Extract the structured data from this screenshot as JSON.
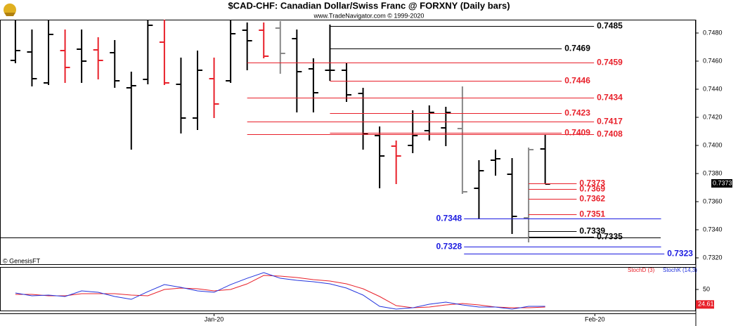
{
  "chart_data": {
    "type": "ohlc",
    "title": "$CAD-CHF:  Canadian Dollar/Swiss Franc @ FORXNY  (Daily bars)",
    "subtitle": "www.TradeNavigator.com © 1999-2020",
    "source": "© GenesisFT",
    "xlim": [
      -0.93,
      41.1
    ],
    "xticks": [
      {
        "value": 12,
        "label": "Jan-20"
      },
      {
        "value": 35,
        "label": "Feb-20"
      }
    ],
    "ylim": [
      0.73155,
      0.74895
    ],
    "yticks": [
      {
        "value": 0.732,
        "label": "0.7320"
      },
      {
        "value": 0.734,
        "label": "0.7340"
      },
      {
        "value": 0.736,
        "label": "0.7360"
      },
      {
        "value": 0.738,
        "label": "0.7380"
      },
      {
        "value": 0.74,
        "label": "0.7400"
      },
      {
        "value": 0.742,
        "label": "0.7420"
      },
      {
        "value": 0.744,
        "label": "0.7440"
      },
      {
        "value": 0.746,
        "label": "0.7460"
      },
      {
        "value": 0.748,
        "label": "0.7480"
      }
    ],
    "open": [
      0.74605,
      0.74665,
      0.74445,
      0.74675,
      0.74685,
      0.7468,
      0.7466,
      0.7441,
      0.7447,
      0.74735,
      0.74435,
      0.74195,
      0.74475,
      0.7446,
      0.7482,
      0.7482,
      0.74835,
      0.7476,
      0.74545,
      0.74535,
      0.74535,
      0.7437,
      0.7407,
      0.73995,
      0.74,
      0.74105,
      0.74125,
      0.7412,
      0.73695,
      0.73895,
      0.73795,
      0.73485,
      0.73975
    ],
    "high": [
      0.749,
      0.74825,
      0.7489,
      0.74825,
      0.74825,
      0.7477,
      0.7475,
      0.74525,
      0.749,
      0.749,
      0.74625,
      0.74675,
      0.74625,
      0.749,
      0.74875,
      0.74875,
      0.74885,
      0.74825,
      0.7462,
      0.7486,
      0.74585,
      0.7441,
      0.74135,
      0.74035,
      0.7425,
      0.74285,
      0.74275,
      0.7442,
      0.73895,
      0.7397,
      0.7391,
      0.73985,
      0.74075
    ],
    "low": [
      0.74585,
      0.7442,
      0.7443,
      0.74445,
      0.74445,
      0.7447,
      0.7441,
      0.7397,
      0.74435,
      0.7443,
      0.74085,
      0.7411,
      0.74195,
      0.74445,
      0.74535,
      0.7462,
      0.7451,
      0.74235,
      0.74235,
      0.7446,
      0.7431,
      0.7397,
      0.73695,
      0.73725,
      0.73945,
      0.74035,
      0.73995,
      0.73655,
      0.73475,
      0.73785,
      0.7337,
      0.7331,
      0.73725
    ],
    "close": [
      0.74675,
      0.74475,
      0.7479,
      0.74555,
      0.746,
      0.74605,
      0.7446,
      0.74425,
      0.74855,
      0.74445,
      0.74195,
      0.74535,
      0.74295,
      0.74795,
      0.74745,
      0.74635,
      0.74655,
      0.74525,
      0.74375,
      0.74535,
      0.7436,
      0.74085,
      0.73925,
      0.73925,
      0.7407,
      0.74235,
      0.74235,
      0.7367,
      0.7382,
      0.73905,
      0.73495,
      0.7397,
      0.73725
    ],
    "colors": [
      "#000000",
      "#000000",
      "#000000",
      "#e8202a",
      "#000000",
      "#e8202a",
      "#000000",
      "#000000",
      "#000000",
      "#e8202a",
      "#000000",
      "#000000",
      "#e8202a",
      "#000000",
      "#000000",
      "#e8202a",
      "#888888",
      "#000000",
      "#000000",
      "#000000",
      "#000000",
      "#000000",
      "#000000",
      "#e8202a",
      "#000000",
      "#000000",
      "#000000",
      "#888888",
      "#000000",
      "#000000",
      "#000000",
      "#888888",
      "#000000"
    ],
    "last_value": 0.7373,
    "levels": [
      {
        "value": 0.7485,
        "color": "#000000",
        "start": 19,
        "end": 34.95
      },
      {
        "value": 0.7469,
        "color": "#000000",
        "start": 19,
        "end": 33.0
      },
      {
        "value": 0.7459,
        "color": "#e8202a",
        "start": 14,
        "end": 34.95
      },
      {
        "value": 0.7446,
        "color": "#e8202a",
        "start": 19,
        "end": 33.0
      },
      {
        "value": 0.7434,
        "color": "#e8202a",
        "start": 14,
        "end": 34.95
      },
      {
        "value": 0.7423,
        "color": "#e8202a",
        "start": 19,
        "end": 33.0
      },
      {
        "value": 0.7417,
        "color": "#e8202a",
        "start": 14,
        "end": 34.95
      },
      {
        "value": 0.7409,
        "color": "#e8202a",
        "start": 19,
        "end": 33.0
      },
      {
        "value": 0.7408,
        "color": "#e8202a",
        "start": 14,
        "end": 34.95
      },
      {
        "value": 0.7373,
        "color": "#e8202a",
        "start": 31,
        "end": 33.9
      },
      {
        "value": 0.7369,
        "color": "#e8202a",
        "start": 31,
        "end": 33.9
      },
      {
        "value": 0.7362,
        "color": "#e8202a",
        "start": 31,
        "end": 33.9
      },
      {
        "value": 0.7351,
        "color": "#e8202a",
        "start": 31,
        "end": 33.9
      },
      {
        "value": 0.7348,
        "color": "#1a1ae0",
        "start": 27.1,
        "end": 39.0,
        "label_side": "left"
      },
      {
        "value": 0.7339,
        "color": "#000000",
        "start": 31,
        "end": 33.9
      },
      {
        "value": 0.7335,
        "color": "#000000",
        "start": 31,
        "end": 34.95
      },
      {
        "value": 0.7328,
        "color": "#1a1ae0",
        "start": 27.1,
        "end": 39.0,
        "label_side": "left"
      },
      {
        "value": 0.7323,
        "color": "#1a1ae0",
        "start": 27.1,
        "end": 39.2
      }
    ],
    "indicator": {
      "type": "line",
      "ylim": [
        14.3,
        88.1
      ],
      "yticks": [
        50
      ],
      "last_value": 24.61,
      "series": [
        {
          "name": "StochD (3)",
          "color": "#e8202a",
          "values": [
            41.7,
            41.7,
            39.3,
            39.3,
            42.9,
            42.9,
            42.9,
            40.5,
            39.3,
            50.0,
            52.4,
            51.2,
            47.6,
            50.0,
            59.5,
            73.8,
            72.6,
            70.2,
            66.7,
            64.3,
            59.5,
            51.2,
            38.1,
            22.6,
            19.0,
            20.2,
            23.8,
            26.2,
            23.8,
            20.2,
            19.0,
            19.0,
            20.2
          ]
        },
        {
          "name": "StochK (14,3)",
          "color": "#2233dd",
          "values": [
            44.0,
            39.3,
            40.5,
            38.1,
            47.6,
            45.2,
            38.1,
            33.3,
            46.4,
            58.3,
            53.6,
            47.6,
            45.2,
            58.3,
            69.0,
            78.6,
            69.0,
            65.5,
            63.1,
            59.5,
            52.4,
            40.5,
            21.4,
            16.7,
            19.0,
            25.0,
            28.6,
            23.8,
            20.2,
            20.2,
            16.7,
            21.4,
            21.4
          ]
        }
      ]
    }
  }
}
